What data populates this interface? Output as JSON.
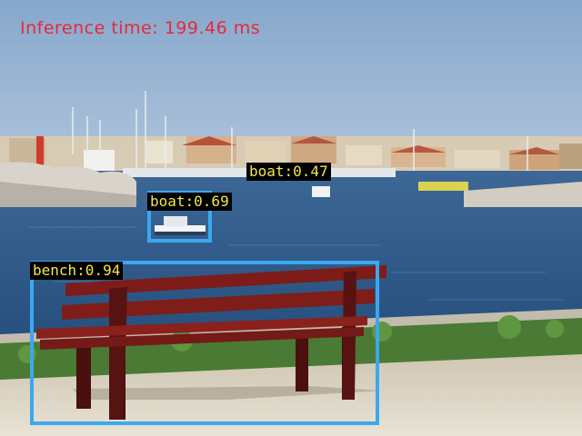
{
  "hud": {
    "inference_text": "Inference time: 199.46 ms",
    "color": "#e8283c"
  },
  "detections": [
    {
      "name": "boat",
      "label": "boat:0.47",
      "score": 0.47
    },
    {
      "name": "boat",
      "label": "boat:0.69",
      "score": 0.69
    },
    {
      "name": "bench",
      "label": "bench:0.94",
      "score": 0.94
    }
  ],
  "style": {
    "box_color": "#3aa8f0",
    "label_text_color": "#f2e64a",
    "label_bg": "#000000"
  }
}
